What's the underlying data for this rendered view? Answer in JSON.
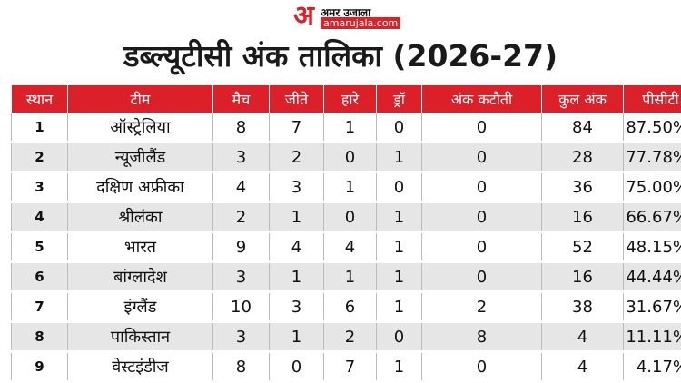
{
  "brand": {
    "logo_mark": "अ",
    "hindi_name": "अमर उजाला",
    "domain": "amarujala.com"
  },
  "title": "डब्ल्यूटीसी अंक तालिका (2026-27)",
  "columns": [
    "स्थान",
    "टीम",
    "मैच",
    "जीते",
    "हारे",
    "ड्रॉ",
    "अंक कटौती",
    "कुल अंक",
    "पीसीटी"
  ],
  "rows": [
    [
      "1",
      "ऑस्ट्रेलिया",
      "8",
      "7",
      "1",
      "0",
      "0",
      "84",
      "87.50%"
    ],
    [
      "2",
      "न्यूजीलैंड",
      "3",
      "2",
      "0",
      "1",
      "0",
      "28",
      "77.78%"
    ],
    [
      "3",
      "दक्षिण अफ्रीका",
      "4",
      "3",
      "1",
      "0",
      "0",
      "36",
      "75.00%"
    ],
    [
      "4",
      "श्रीलंका",
      "2",
      "1",
      "0",
      "1",
      "0",
      "16",
      "66.67%"
    ],
    [
      "5",
      "भारत",
      "9",
      "4",
      "4",
      "1",
      "0",
      "52",
      "48.15%"
    ],
    [
      "6",
      "बांग्लादेश",
      "3",
      "1",
      "1",
      "1",
      "0",
      "16",
      "44.44%"
    ],
    [
      "7",
      "इंग्लैंड",
      "10",
      "3",
      "6",
      "1",
      "2",
      "38",
      "31.67%"
    ],
    [
      "8",
      "पाकिस्तान",
      "3",
      "1",
      "2",
      "0",
      "8",
      "4",
      "11.11%"
    ],
    [
      "9",
      "वेस्टइंडीज",
      "8",
      "0",
      "7",
      "1",
      "0",
      "4",
      "4.17%"
    ]
  ],
  "colors": {
    "header_bg": "#dc2029",
    "header_text": "#ffffff",
    "stripe": "#e6e6e6",
    "brand_red": "#d8232a"
  }
}
